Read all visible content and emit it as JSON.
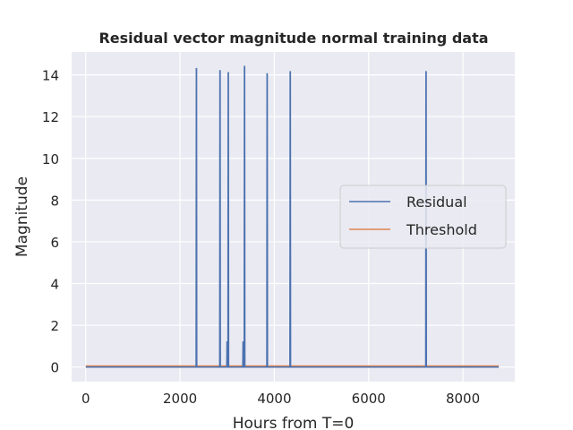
{
  "chart_data": {
    "type": "line",
    "title": "Residual vector magnitude normal training data",
    "xlabel": "Hours from T=0",
    "ylabel": "Magnitude",
    "xlim": [
      -300,
      9100
    ],
    "ylim": [
      -0.7,
      15.1
    ],
    "xticks": [
      0,
      2000,
      4000,
      6000,
      8000
    ],
    "yticks": [
      0,
      2,
      4,
      6,
      8,
      10,
      12,
      14
    ],
    "grid": true,
    "legend_position": "center-right",
    "colors": {
      "background": "#eaeaf2",
      "grid": "#ffffff",
      "residual": "#4c72b0",
      "threshold": "#dd8452",
      "text": "#262626"
    },
    "series": [
      {
        "name": "Residual",
        "x": [
          0,
          2340,
          2345,
          2350,
          2355,
          2840,
          2845,
          2850,
          2855,
          2990,
          2995,
          3000,
          3005,
          3015,
          3020,
          3025,
          3030,
          3330,
          3335,
          3340,
          3345,
          3360,
          3365,
          3370,
          3375,
          3840,
          3845,
          3850,
          3855,
          4330,
          4335,
          4340,
          4345,
          7210,
          7215,
          7220,
          7225,
          8760
        ],
        "y": [
          0,
          0,
          14.3,
          14.3,
          0,
          0,
          14.2,
          14.2,
          0,
          0,
          1.2,
          1.2,
          0,
          0,
          14.1,
          14.1,
          0,
          0,
          1.2,
          1.2,
          0,
          0,
          14.4,
          14.4,
          0,
          0,
          14.05,
          14.05,
          0,
          0,
          14.15,
          14.15,
          0,
          0,
          14.15,
          14.15,
          0,
          0
        ]
      },
      {
        "name": "Threshold",
        "x": [
          0,
          8760
        ],
        "y": [
          0.05,
          0.05
        ]
      }
    ]
  }
}
